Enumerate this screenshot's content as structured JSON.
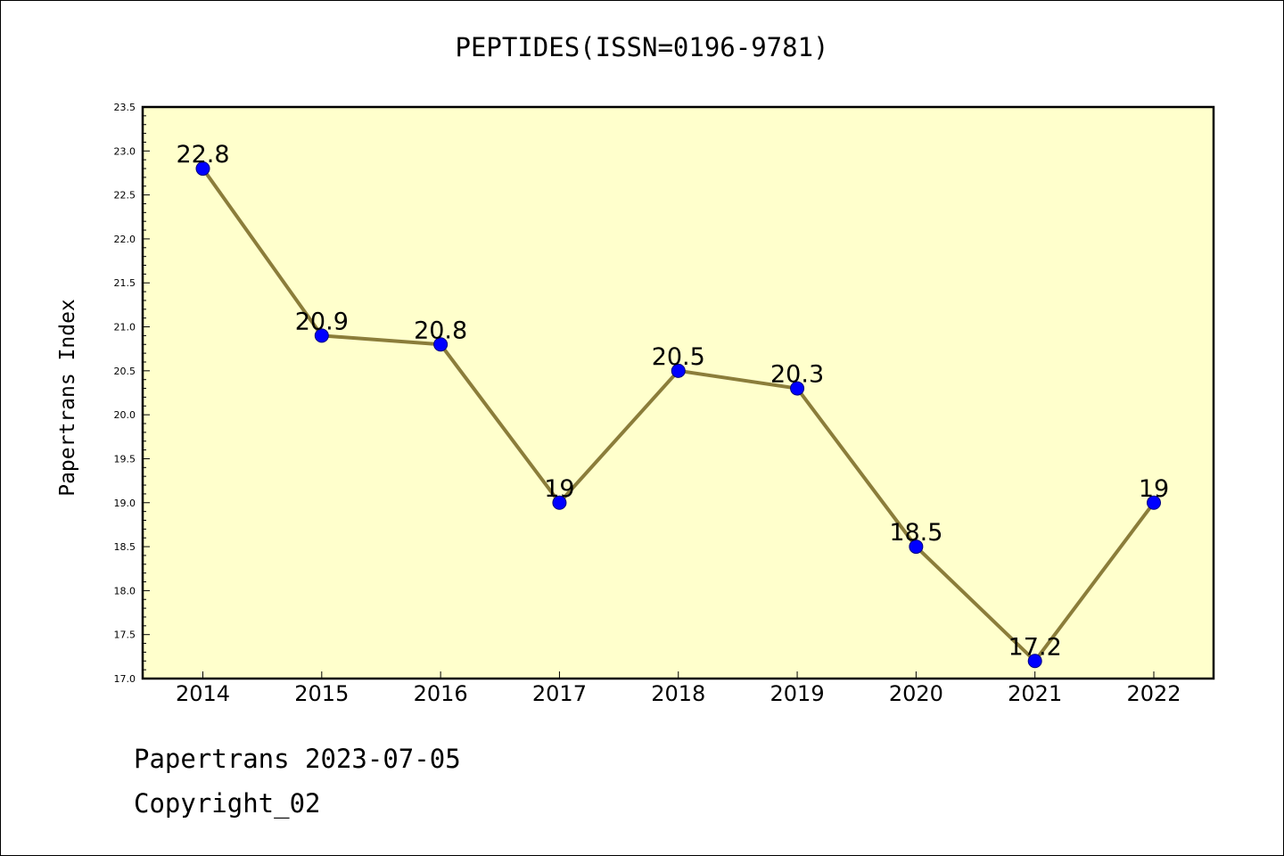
{
  "chart_data": {
    "type": "line",
    "title": "PEPTIDES(ISSN=0196-9781)",
    "xlabel": "",
    "ylabel": "Papertrans Index",
    "categories": [
      "2014",
      "2015",
      "2016",
      "2017",
      "2018",
      "2019",
      "2020",
      "2021",
      "2022"
    ],
    "values": [
      22.8,
      20.9,
      20.8,
      19,
      20.5,
      20.3,
      18.5,
      17.2,
      19
    ],
    "data_labels": [
      "22.8",
      "20.9",
      "20.8",
      "19",
      "20.5",
      "20.3",
      "18.5",
      "17.2",
      "19"
    ],
    "ylim": [
      17.0,
      23.5
    ],
    "yticks": [
      "17.0",
      "17.5",
      "18.0",
      "18.5",
      "19.0",
      "19.5",
      "20.0",
      "20.5",
      "21.0",
      "21.5",
      "22.0",
      "22.5",
      "23.0",
      "23.5"
    ],
    "grid": false,
    "legend": "none",
    "colors": {
      "plot_background": "#ffffcc",
      "line": "#8b7d3a",
      "marker": "#0000ff",
      "marker_edge": "#000080"
    }
  },
  "footer": {
    "date_line": "Papertrans 2023-07-05",
    "copyright": "Copyright_02"
  }
}
